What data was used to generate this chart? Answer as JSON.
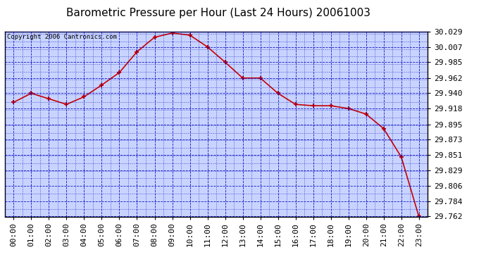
{
  "title": "Barometric Pressure per Hour (Last 24 Hours) 20061003",
  "copyright": "Copyright 2006 Cantronics.com",
  "x_labels": [
    "00:00",
    "01:00",
    "02:00",
    "03:00",
    "04:00",
    "05:00",
    "06:00",
    "07:00",
    "08:00",
    "09:00",
    "10:00",
    "11:00",
    "12:00",
    "13:00",
    "14:00",
    "15:00",
    "16:00",
    "17:00",
    "18:00",
    "19:00",
    "20:00",
    "21:00",
    "22:00",
    "23:00"
  ],
  "y_values": [
    29.927,
    29.94,
    29.932,
    29.924,
    29.935,
    29.952,
    29.97,
    30.0,
    30.021,
    30.027,
    30.024,
    30.007,
    29.985,
    29.962,
    29.962,
    29.94,
    29.924,
    29.922,
    29.922,
    29.918,
    29.91,
    29.889,
    29.848,
    29.762
  ],
  "y_ticks": [
    29.762,
    29.784,
    29.806,
    29.829,
    29.851,
    29.873,
    29.895,
    29.918,
    29.94,
    29.962,
    29.985,
    30.007,
    30.029
  ],
  "y_min": 29.762,
  "y_max": 30.029,
  "line_color": "#cc0000",
  "marker_color": "#cc0000",
  "plot_bg_color": "#c8d4ff",
  "outer_bg": "#ffffff",
  "grid_color": "#0000bb",
  "title_fontsize": 11,
  "tick_fontsize": 8,
  "copyright_fontsize": 6.5
}
